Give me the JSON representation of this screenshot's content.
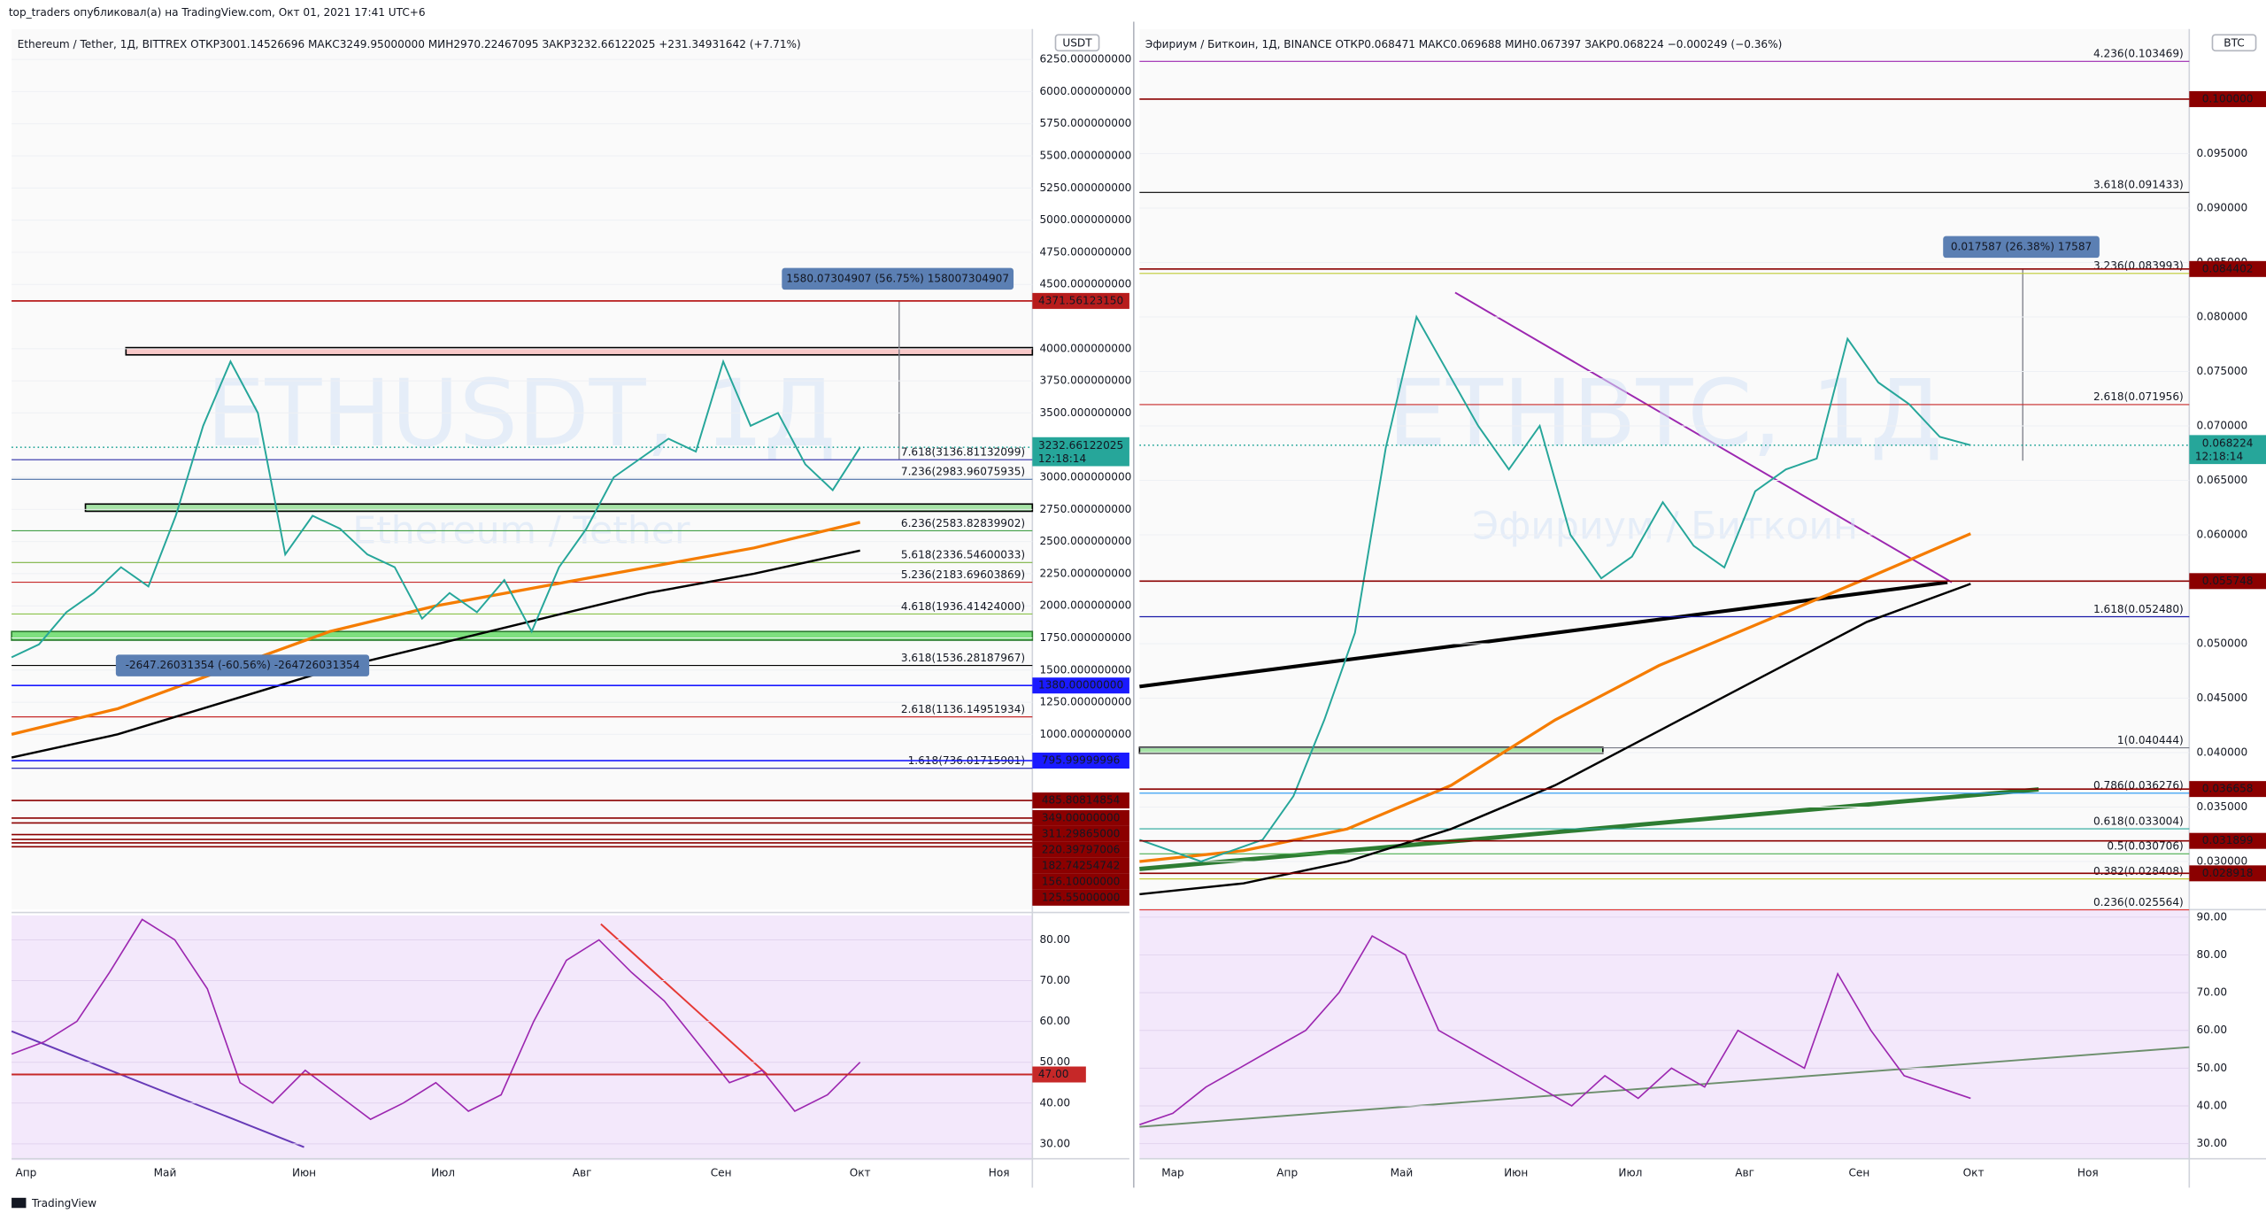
{
  "header": "top_traders опубликовал(а) на TradingView.com, Окт 01, 2021 17:41 UTC+6",
  "footer": "TradingView",
  "panels": [
    {
      "header": "Ethereum / Tether, 1Д, BITTREX  ОТКР3001.14526696  МАКС3249.95000000  МИН2970.22467095  ЗАКР3232.66122025  +231.34931642 (+7.71%)",
      "unit": "USDT",
      "watermark": "ETHUSDT, 1Д",
      "watermark_sub": "Ethereum / Tether",
      "ylim": [
        -363,
        6487
      ],
      "yticks": [
        {
          "value": 6250,
          "label": "6250.000000000"
        },
        {
          "value": 6000,
          "label": "6000.000000000"
        },
        {
          "value": 5750,
          "label": "5750.000000000"
        },
        {
          "value": 5500,
          "label": "5500.000000000"
        },
        {
          "value": 5250,
          "label": "5250.000000000"
        },
        {
          "value": 5000,
          "label": "5000.000000000"
        },
        {
          "value": 4750,
          "label": "4750.000000000"
        },
        {
          "value": 4500,
          "label": "4500.000000000"
        },
        {
          "value": 4000,
          "label": "4000.000000000"
        },
        {
          "value": 3750,
          "label": "3750.000000000"
        },
        {
          "value": 3500,
          "label": "3500.000000000"
        },
        {
          "value": 3000,
          "label": "3000.000000000"
        },
        {
          "value": 2750,
          "label": "2750.000000000"
        },
        {
          "value": 2500,
          "label": "2500.000000000"
        },
        {
          "value": 2250,
          "label": "2250.000000000"
        },
        {
          "value": 2000,
          "label": "2000.000000000"
        },
        {
          "value": 1750,
          "label": "1750.000000000"
        },
        {
          "value": 1500,
          "label": "1500.000000000"
        },
        {
          "value": 1250,
          "label": "1250.000000000"
        },
        {
          "value": 1000,
          "label": "1000.000000000"
        }
      ],
      "months": [
        "Апр",
        "Май",
        "Июн",
        "Июл",
        "Авг",
        "Сен",
        "Окт",
        "Ноя"
      ],
      "close": [
        1600,
        1700,
        1950,
        2100,
        2300,
        2150,
        2700,
        3400,
        3900,
        3500,
        2400,
        2700,
        2600,
        2400,
        2300,
        1900,
        2100,
        1950,
        2200,
        1800,
        2300,
        2600,
        3000,
        3150,
        3300,
        3200,
        3900,
        3400,
        3500,
        3100,
        2900,
        3232.66122025
      ],
      "ma_orange": [
        1000,
        1200,
        1500,
        1800,
        2000,
        2150,
        2300,
        2450,
        2650
      ],
      "ma_black": [
        820,
        1000,
        1250,
        1500,
        1700,
        1900,
        2100,
        2250,
        2430
      ],
      "fib_levels": [
        {
          "label": "7.618(3136.81132099)",
          "value": 3136.81132099,
          "color": "#2e2ea8"
        },
        {
          "label": "7.236(2983.96075935)",
          "value": 2983.96075935,
          "color": "#4a6fa5"
        },
        {
          "label": "6.236(2583.82839902)",
          "value": 2583.82839902,
          "color": "#43a047"
        },
        {
          "label": "5.618(2336.54600033)",
          "value": 2336.54600033,
          "color": "#7cb342"
        },
        {
          "label": "5.236(2183.69603869)",
          "value": 2183.69603869,
          "color": "#c62828"
        },
        {
          "label": "4.618(1936.41424000)",
          "value": 1936.41424,
          "color": "#8bc34a"
        },
        {
          "label": "3.618(1536.28187967)",
          "value": 1536.28187967,
          "color": "#000000"
        },
        {
          "label": "2.618(1136.14951934)",
          "value": 1136.14951934,
          "color": "#c62828"
        },
        {
          "label": "1.618(736.01715901)",
          "value": 736.01715901,
          "color": "#1a1aa8"
        }
      ],
      "price_marks": [
        {
          "value": 4371.5612315,
          "label": "4371.56123150",
          "color": "#b71c1c"
        },
        {
          "value": 1380,
          "label": "1380.00000000",
          "color": "#1a1aff"
        },
        {
          "value": 795.99999996,
          "label": "795.99999996",
          "color": "#1a1aff"
        },
        {
          "value": 485.80814854,
          "label": "485.80814854",
          "color": "#8b0000"
        },
        {
          "value": 349,
          "label": "349.00000000",
          "color": "#8b0000"
        },
        {
          "value": 311.29865,
          "label": "311.29865000",
          "color": "#8b0000"
        },
        {
          "value": 220.39797006,
          "label": "220.39797006",
          "color": "#8b0000"
        },
        {
          "value": 182.74254742,
          "label": "182.74254742",
          "color": "#8b0000"
        },
        {
          "value": 156.1,
          "label": "156.10000000",
          "color": "#8b0000"
        },
        {
          "value": 125.55,
          "label": "125.55000000",
          "color": "#8b0000"
        }
      ],
      "last": {
        "value": 3232.66122025,
        "label": "3232.66122025",
        "timer": "12:18:14"
      },
      "measures": [
        "1580.07304907 (56.75%) 158007304907",
        "-2647.26031354 (-60.56%) -264726031354"
      ],
      "rsi": {
        "ylim": [
          26,
          86
        ],
        "yticks": [
          {
            "value": 80,
            "label": "80.00"
          },
          {
            "value": 70,
            "label": "70.00"
          },
          {
            "value": 60,
            "label": "60.00"
          },
          {
            "value": 50,
            "label": "50.00"
          },
          {
            "value": 40,
            "label": "40.00"
          },
          {
            "value": 30,
            "label": "30.00"
          }
        ],
        "values": [
          52,
          55,
          60,
          72,
          85,
          80,
          68,
          45,
          40,
          48,
          42,
          36,
          40,
          45,
          38,
          42,
          60,
          75,
          80,
          72,
          65,
          55,
          45,
          48,
          38,
          42,
          50
        ],
        "level": {
          "value": 47,
          "label": "47.00"
        }
      }
    },
    {
      "header": "Эфириум / Биткоин, 1Д, BINANCE  ОТКР0.068471  МАКС0.069688  МИН0.067397  ЗАКР0.068224  −0.000249 (−0.36%)",
      "unit": "BTC",
      "watermark": "ETHBTC, 1Д",
      "watermark_sub": "Эфириум / Биткоин",
      "ylim": [
        0.02559,
        0.10644
      ],
      "yticks": [
        {
          "value": 0.095,
          "label": "0.095000"
        },
        {
          "value": 0.09,
          "label": "0.090000"
        },
        {
          "value": 0.085,
          "label": "0.085000"
        },
        {
          "value": 0.08,
          "label": "0.080000"
        },
        {
          "value": 0.075,
          "label": "0.075000"
        },
        {
          "value": 0.07,
          "label": "0.070000"
        },
        {
          "value": 0.065,
          "label": "0.065000"
        },
        {
          "value": 0.06,
          "label": "0.060000"
        },
        {
          "value": 0.05,
          "label": "0.050000"
        },
        {
          "value": 0.045,
          "label": "0.045000"
        },
        {
          "value": 0.04,
          "label": "0.040000"
        },
        {
          "value": 0.035,
          "label": "0.035000"
        },
        {
          "value": 0.03,
          "label": "0.030000"
        }
      ],
      "months": [
        "Мар",
        "Апр",
        "Май",
        "Июн",
        "Июл",
        "Авг",
        "Сен",
        "Окт",
        "Ноя"
      ],
      "close": [
        0.032,
        0.031,
        0.03,
        0.031,
        0.032,
        0.036,
        0.043,
        0.051,
        0.068,
        0.08,
        0.075,
        0.07,
        0.066,
        0.07,
        0.06,
        0.056,
        0.058,
        0.063,
        0.059,
        0.057,
        0.064,
        0.066,
        0.067,
        0.078,
        0.074,
        0.072,
        0.069,
        0.068224
      ],
      "ma_orange": [
        0.03,
        0.031,
        0.033,
        0.037,
        0.043,
        0.048,
        0.052,
        0.056,
        0.0601
      ],
      "ma_black": [
        0.027,
        0.028,
        0.03,
        0.033,
        0.037,
        0.042,
        0.047,
        0.052,
        0.0555
      ],
      "fib_levels": [
        {
          "label": "4.236(0.103469)",
          "value": 0.103469,
          "color": "#9c27b0"
        },
        {
          "label": "3.618(0.091433)",
          "value": 0.091433,
          "color": "#000000"
        },
        {
          "label": "3.236(0.083993)",
          "value": 0.083993,
          "color": "#c0ca33"
        },
        {
          "label": "2.618(0.071956)",
          "value": 0.071956,
          "color": "#c62828"
        },
        {
          "label": "1.618(0.052480)",
          "value": 0.05248,
          "color": "#1a1aa8"
        },
        {
          "label": "1(0.040444)",
          "value": 0.040444,
          "color": "#787b86"
        },
        {
          "label": "0.786(0.036276)",
          "value": 0.036276,
          "color": "#2196f3"
        },
        {
          "label": "0.618(0.033004)",
          "value": 0.033004,
          "color": "#26a69a"
        },
        {
          "label": "0.5(0.030706)",
          "value": 0.030706,
          "color": "#4caf50"
        },
        {
          "label": "0.382(0.028408)",
          "value": 0.028408,
          "color": "#c0ca33"
        },
        {
          "label": "0.236(0.025564)",
          "value": 0.025564,
          "color": "#e53935"
        }
      ],
      "price_marks": [
        {
          "value": 0.1,
          "label": "0.100000",
          "color": "#8b0000"
        },
        {
          "value": 0.084402,
          "label": "0.084402",
          "color": "#8b0000"
        },
        {
          "value": 0.055748,
          "label": "0.055748",
          "color": "#8b0000"
        },
        {
          "value": 0.036658,
          "label": "0.036658",
          "color": "#8b0000"
        },
        {
          "value": 0.031899,
          "label": "0.031899",
          "color": "#8b0000"
        },
        {
          "value": 0.028918,
          "label": "0.028918",
          "color": "#8b0000"
        }
      ],
      "last": {
        "value": 0.068224,
        "label": "0.068224",
        "timer": "12:18:14"
      },
      "measures": [
        "0.017587 (26.38%) 17587"
      ],
      "rsi": {
        "ylim": [
          26,
          92
        ],
        "yticks": [
          {
            "value": 90,
            "label": "90.00"
          },
          {
            "value": 80,
            "label": "80.00"
          },
          {
            "value": 70,
            "label": "70.00"
          },
          {
            "value": 60,
            "label": "60.00"
          },
          {
            "value": 50,
            "label": "50.00"
          },
          {
            "value": 40,
            "label": "40.00"
          },
          {
            "value": 30,
            "label": "30.00"
          }
        ],
        "values": [
          35,
          38,
          45,
          50,
          55,
          60,
          70,
          85,
          80,
          60,
          55,
          50,
          45,
          40,
          48,
          42,
          50,
          45,
          60,
          55,
          50,
          75,
          60,
          48,
          45,
          42
        ]
      }
    }
  ]
}
